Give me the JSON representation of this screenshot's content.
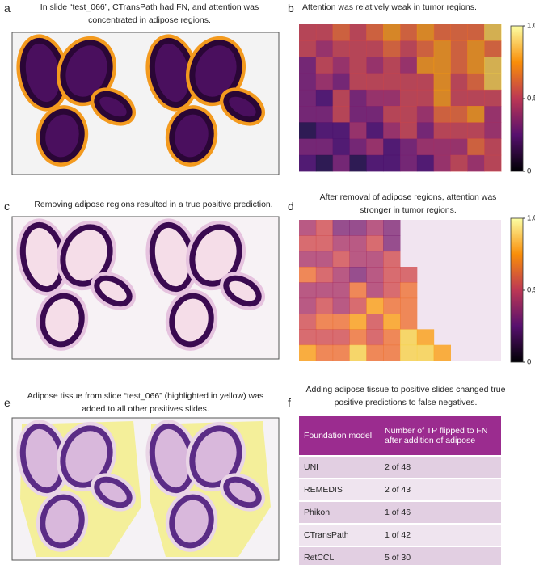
{
  "panels": [
    {
      "letter": "a",
      "caption": "In slide “test_066”, CTransPath had FN, and attention was concentrated in adipose regions."
    },
    {
      "letter": "b",
      "caption": "Attention was relatively weak in tumor regions."
    },
    {
      "letter": "c",
      "caption": "Removing adipose regions resulted in a true positive prediction."
    },
    {
      "letter": "d",
      "caption": "After removal of adipose regions, attention was stronger in tumor regions."
    },
    {
      "letter": "e",
      "caption": "Adipose tissue from slide “test_066” (highlighted in yellow) was added to all other positives slides."
    },
    {
      "letter": "f",
      "caption": "Adding adipose tissue to positive slides changed true positive predictions to false negatives."
    }
  ],
  "colorbars": [
    {
      "lim": [
        0,
        1
      ],
      "ticks": [
        0,
        0.5,
        {
          "value": 1,
          "label": "1.0"
        }
      ]
    },
    {
      "lim": [
        0,
        1
      ],
      "ticks": [
        0,
        0.5,
        {
          "value": 1,
          "label": "1.0"
        }
      ]
    }
  ],
  "table": {
    "header": [
      "Foundation model",
      "Number of TP flipped to FN after addition of adipose"
    ],
    "rows": [
      [
        "UNI",
        "2 of 48"
      ],
      [
        "REMEDIS",
        "2 of 43"
      ],
      [
        "Phikon",
        "1 of 46"
      ],
      [
        "CTransPath",
        "1 of 42"
      ],
      [
        "RetCCL",
        "5 of 30"
      ]
    ]
  }
}
